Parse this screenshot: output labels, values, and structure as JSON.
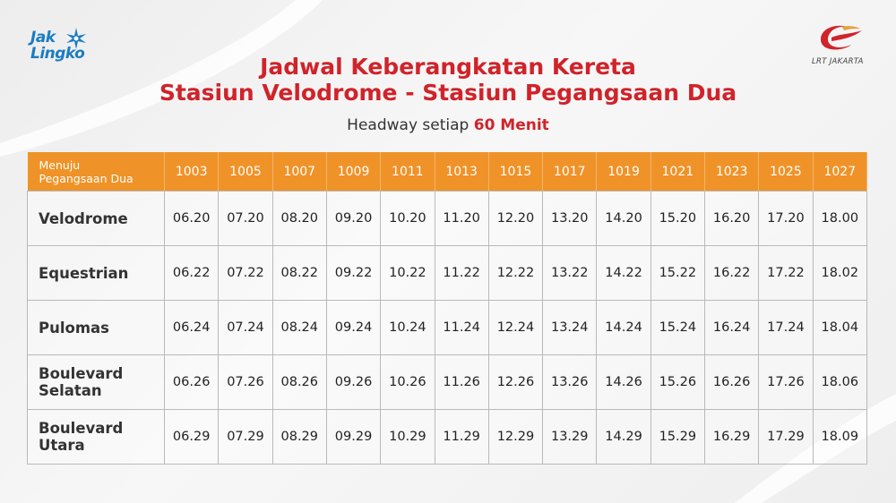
{
  "logos": {
    "left": {
      "line1": "Jak",
      "line2": "Lingko"
    },
    "right": {
      "text": "LRT JAKARTA"
    }
  },
  "title": {
    "line1": "Jadwal Keberangkatan Kereta",
    "line2": "Stasiun Velodrome - Stasiun Pegangsaan Dua"
  },
  "headway": {
    "prefix": "Headway setiap",
    "value": "60 Menit"
  },
  "colors": {
    "accent": "#d0232a",
    "header": "#ef9328",
    "brand_blue": "#1a7cc1"
  },
  "table": {
    "corner_line1": "Menuju",
    "corner_line2": "Pegangsaan Dua",
    "trains": [
      "1003",
      "1005",
      "1007",
      "1009",
      "1011",
      "1013",
      "1015",
      "1017",
      "1019",
      "1021",
      "1023",
      "1025",
      "1027"
    ],
    "rows": [
      {
        "line1": "Velodrome",
        "line2": "",
        "times": [
          "06.20",
          "07.20",
          "08.20",
          "09.20",
          "10.20",
          "11.20",
          "12.20",
          "13.20",
          "14.20",
          "15.20",
          "16.20",
          "17.20",
          "18.00"
        ]
      },
      {
        "line1": "Equestrian",
        "line2": "",
        "times": [
          "06.22",
          "07.22",
          "08.22",
          "09.22",
          "10.22",
          "11.22",
          "12.22",
          "13.22",
          "14.22",
          "15.22",
          "16.22",
          "17.22",
          "18.02"
        ]
      },
      {
        "line1": "Pulomas",
        "line2": "",
        "times": [
          "06.24",
          "07.24",
          "08.24",
          "09.24",
          "10.24",
          "11.24",
          "12.24",
          "13.24",
          "14.24",
          "15.24",
          "16.24",
          "17.24",
          "18.04"
        ]
      },
      {
        "line1": "Boulevard",
        "line2": "Selatan",
        "times": [
          "06.26",
          "07.26",
          "08.26",
          "09.26",
          "10.26",
          "11.26",
          "12.26",
          "13.26",
          "14.26",
          "15.26",
          "16.26",
          "17.26",
          "18.06"
        ]
      },
      {
        "line1": "Boulevard",
        "line2": "Utara",
        "times": [
          "06.29",
          "07.29",
          "08.29",
          "09.29",
          "10.29",
          "11.29",
          "12.29",
          "13.29",
          "14.29",
          "15.29",
          "16.29",
          "17.29",
          "18.09"
        ]
      }
    ]
  }
}
